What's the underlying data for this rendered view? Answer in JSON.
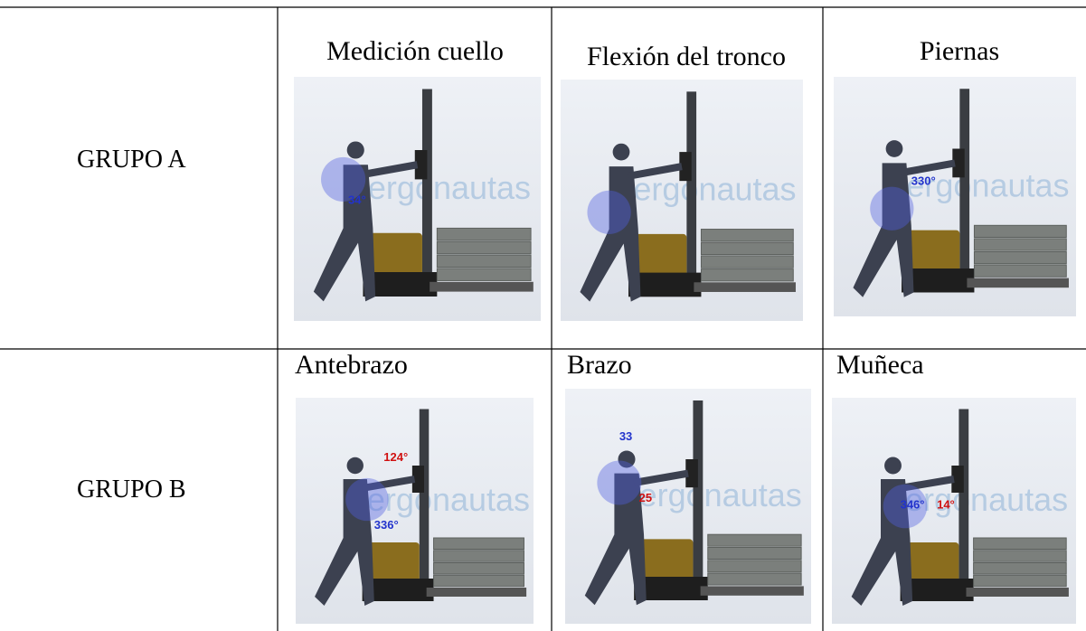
{
  "table": {
    "rows": [
      {
        "group": "GRUPO A",
        "cells": [
          {
            "title": "Medición cuello",
            "angles": [
              "34°"
            ]
          },
          {
            "title": "Flexión del tronco",
            "angles": []
          },
          {
            "title": "Piernas",
            "angles": [
              "330°"
            ]
          }
        ]
      },
      {
        "group": "GRUPO B",
        "cells": [
          {
            "title": "Antebrazo",
            "angles": [
              "124°",
              "336°"
            ]
          },
          {
            "title": "Brazo",
            "angles": [
              "33",
              "25"
            ]
          },
          {
            "title": "Muñeca",
            "angles": [
              "346°",
              "14°"
            ]
          }
        ]
      }
    ]
  },
  "watermark": "ergonautas"
}
